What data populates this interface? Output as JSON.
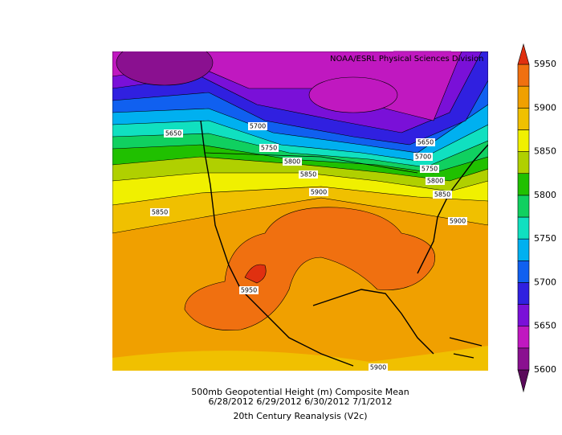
{
  "header": {
    "credit": "NOAA/ESRL Physical Sciences Division"
  },
  "map": {
    "contour_labels": [
      "5650",
      "5700",
      "5750",
      "5800",
      "5850",
      "5900",
      "5650",
      "5700",
      "5750",
      "5800",
      "5850",
      "5900",
      "5850",
      "5950",
      "5900"
    ]
  },
  "colorbar": {
    "ticks": [
      5600,
      5650,
      5700,
      5750,
      5800,
      5850,
      5900,
      5950
    ],
    "colors": [
      "#5a0a5a",
      "#8a1090",
      "#c018c0",
      "#7a10d8",
      "#3020e0",
      "#1060f0",
      "#00b0f0",
      "#10e0c0",
      "#10d060",
      "#20c000",
      "#b0d000",
      "#f0f000",
      "#f0c000",
      "#f0a000",
      "#f07010",
      "#e03010"
    ]
  },
  "footer": {
    "title": "500mb Geopotential Height (m) Composite Mean",
    "dates": "6/28/2012 6/29/2012 6/30/2012 7/1/2012",
    "source": "20th Century Reanalysis (V2c)"
  }
}
